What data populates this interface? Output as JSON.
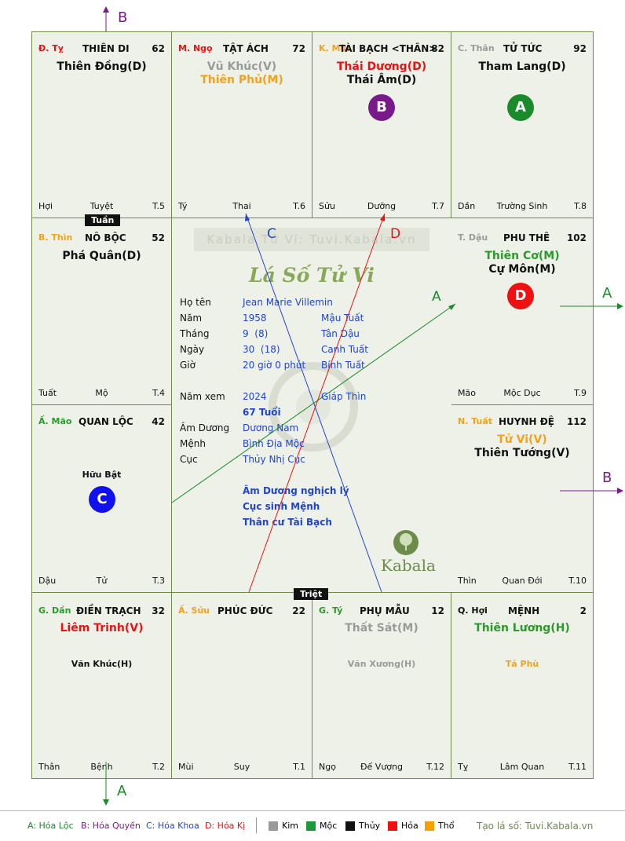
{
  "palaces": [
    {
      "id": "ty",
      "can": "Đ. Tỵ",
      "can_color": "#e11",
      "name": "THIÊN DI",
      "num": "62",
      "stars": [
        {
          "t": "Thiên Đồng(D)",
          "c": "#111"
        }
      ],
      "minor": "",
      "bl": "Hợi",
      "bc": "Tuyệt",
      "br": "T.5"
    },
    {
      "id": "ngo",
      "can": "M. Ngọ",
      "can_color": "#e11",
      "name": "TẬT ÁCH",
      "num": "72",
      "stars": [
        {
          "t": "Vũ Khúc(V)",
          "c": "#9a9a9a"
        },
        {
          "t": "Thiên Phủ(M)",
          "c": "#f0a21e"
        }
      ],
      "minor": "",
      "bl": "Tý",
      "bc": "Thai",
      "br": "T.6"
    },
    {
      "id": "mui",
      "can": "K. Mùi",
      "can_color": "#f0a21e",
      "name": "TÀI BẠCH <THÂN>",
      "num": "82",
      "stars": [
        {
          "t": "Thái Dương(D)",
          "c": "#e11"
        },
        {
          "t": "Thái Âm(D)",
          "c": "#111"
        }
      ],
      "minor": "",
      "bl": "Sửu",
      "bc": "Dưỡng",
      "br": "T.7"
    },
    {
      "id": "than",
      "can": "C. Thân",
      "can_color": "#9a9a9a",
      "name": "TỬ TỨC",
      "num": "92",
      "stars": [
        {
          "t": "Tham Lang(D)",
          "c": "#111"
        }
      ],
      "minor": "",
      "bl": "Dần",
      "bc": "Trường Sinh",
      "br": "T.8"
    },
    {
      "id": "thin",
      "can": "B. Thìn",
      "can_color": "#f0a21e",
      "name": "NÔ BỘC",
      "num": "52",
      "stars": [
        {
          "t": "Phá Quân(D)",
          "c": "#111"
        }
      ],
      "minor": "",
      "bl": "Tuất",
      "bc": "Mộ",
      "br": "T.4"
    },
    {
      "id": "dau",
      "can": "T. Dậu",
      "can_color": "#9a9a9a",
      "name": "PHU THÊ",
      "num": "102",
      "stars": [
        {
          "t": "Thiên Cơ(M)",
          "c": "#2a9a2a"
        },
        {
          "t": "Cự Môn(M)",
          "c": "#111"
        }
      ],
      "minor": "",
      "bl": "Mão",
      "bc": "Mộc Dục",
      "br": "T.9"
    },
    {
      "id": "mao",
      "can": "Ấ. Mão",
      "can_color": "#2a9a2a",
      "name": "QUAN LỘC",
      "num": "42",
      "stars": [],
      "minor": "Hữu Bật",
      "bl": "Dậu",
      "bc": "Tử",
      "br": "T.3"
    },
    {
      "id": "tuat",
      "can": "N. Tuất",
      "can_color": "#f0a21e",
      "name": "HUYNH ĐỆ",
      "num": "112",
      "stars": [
        {
          "t": "Tử Vi(V)",
          "c": "#f0a21e"
        },
        {
          "t": "Thiên Tướng(V)",
          "c": "#111"
        }
      ],
      "minor": "",
      "bl": "Thìn",
      "bc": "Quan Đới",
      "br": "T.10"
    },
    {
      "id": "dan",
      "can": "G. Dần",
      "can_color": "#2a9a2a",
      "name": "ĐIỀN TRẠCH",
      "num": "32",
      "stars": [
        {
          "t": "Liêm Trinh(V)",
          "c": "#e11"
        }
      ],
      "minor": "Văn Khúc(H)",
      "minor_color": "#111",
      "bl": "Thân",
      "bc": "Bệnh",
      "br": "T.2"
    },
    {
      "id": "suu",
      "can": "Ấ. Sửu",
      "can_color": "#f0a21e",
      "name": "PHÚC ĐỨC",
      "num": "22",
      "stars": [],
      "minor": "",
      "bl": "Mùi",
      "bc": "Suy",
      "br": "T.1"
    },
    {
      "id": "ty2",
      "can": "G. Tý",
      "can_color": "#2a9a2a",
      "name": "PHỤ MẪU",
      "num": "12",
      "stars": [
        {
          "t": "Thất Sát(M)",
          "c": "#9a9a9a"
        }
      ],
      "minor": "Văn Xương(H)",
      "minor_color": "#9a9a9a",
      "bl": "Ngọ",
      "bc": "Đế Vượng",
      "br": "T.12"
    },
    {
      "id": "hoi",
      "can": "Q. Hợi",
      "can_color": "#111",
      "name": "MỆNH",
      "num": "2",
      "stars": [
        {
          "t": "Thiên Lương(H)",
          "c": "#2a9a2a"
        }
      ],
      "minor": "Tả Phù",
      "minor_color": "#f0a21e",
      "bl": "Tỵ",
      "bc": "Lâm Quan",
      "br": "T.11"
    }
  ],
  "tags": {
    "tuan": "Tuần",
    "triet": "Triệt"
  },
  "markers": {
    "a": "A",
    "b": "B",
    "c": "C",
    "d": "D"
  },
  "arrows": {
    "a": "A",
    "b": "B",
    "c": "C",
    "d": "D"
  },
  "center": {
    "site": "Kabala Tử Vi: Tuvi.Kabala.vn",
    "title": "Lá Số Tử Vi",
    "rows": [
      {
        "label": "Họ tên",
        "v1": "Jean Marie Villemin",
        "v2": ""
      },
      {
        "label": "Năm",
        "v1": "1958",
        "v2": "Mậu Tuất"
      },
      {
        "label": "Tháng",
        "v1": "9  (8)",
        "v2": "Tân Dậu"
      },
      {
        "label": "Ngày",
        "v1": "30  (18)",
        "v2": "Canh Tuất"
      },
      {
        "label": "Giờ",
        "v1": "20 giờ 0 phút",
        "v2": "Bính Tuất"
      }
    ],
    "nam_xem_label": "Năm xem",
    "nam_xem": "2024",
    "nam_xem_can": "Giáp Thìn",
    "tuoi": "67 Tuổi",
    "rows2": [
      {
        "label": "Âm Dương",
        "v1": "Dương Nam"
      },
      {
        "label": "Mệnh",
        "v1": "Bình Địa Mộc"
      },
      {
        "label": "Cục",
        "v1": "Thủy Nhị Cục"
      }
    ],
    "notes": [
      "Âm Dương nghịch lý",
      "Cục sinh Mệnh",
      "Thân cư Tài Bạch"
    ],
    "brand": "Kabala"
  },
  "legend": {
    "a": "A: Hóa Lộc",
    "b": "B: Hóa Quyền",
    "c": "C: Hóa Khoa",
    "d": "D: Hóa Kị",
    "kim": "Kim",
    "moc": "Mộc",
    "thuy": "Thủy",
    "hoa": "Hỏa",
    "tho": "Thổ",
    "credit": "Tạo lá số: Tuvi.Kabala.vn"
  },
  "colors": {
    "kim": "#999999",
    "moc": "#1a9a3a",
    "thuy": "#111111",
    "hoa": "#ee1111",
    "tho": "#f5a000",
    "grid": "#6d8c4c",
    "blue": "#2244cc"
  }
}
